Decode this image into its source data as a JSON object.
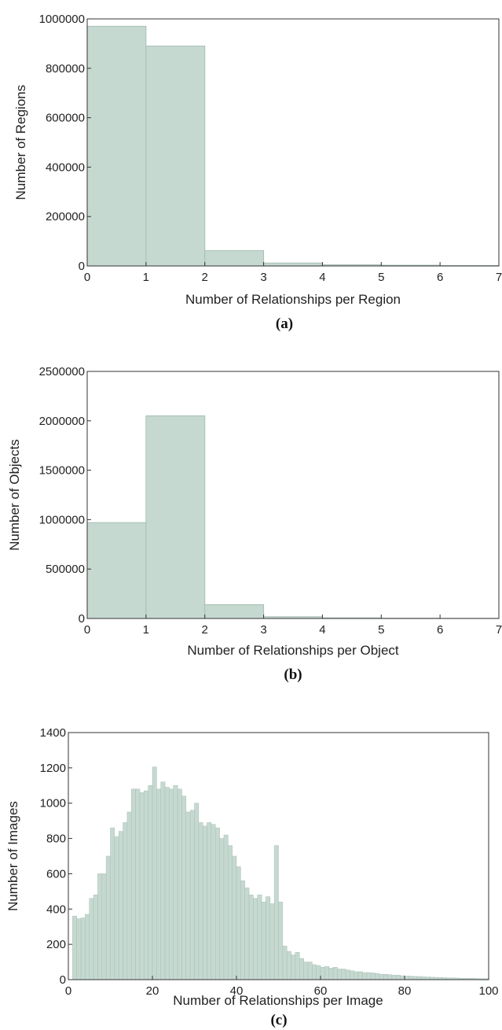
{
  "colors": {
    "bar_fill": "#c5d9d0",
    "bar_stroke": "#a9bfb6",
    "axis": "#333333",
    "text": "#222222"
  },
  "chart_data": [
    {
      "type": "bar",
      "caption": "(a)",
      "xlabel": "Number of Relationships per Region",
      "ylabel": "Number of Regions",
      "xlim": [
        0,
        7
      ],
      "ylim": [
        0,
        1000000
      ],
      "xticks": [
        0,
        1,
        2,
        3,
        4,
        5,
        6,
        7
      ],
      "yticks": [
        0,
        200000,
        400000,
        600000,
        800000,
        1000000
      ],
      "grid": false,
      "bin_edges": [
        0,
        1,
        2,
        3,
        4,
        5,
        6,
        7
      ],
      "values": [
        970000,
        890000,
        62000,
        12000,
        5000,
        3000,
        1500
      ]
    },
    {
      "type": "bar",
      "caption": "(b)",
      "xlabel": "Number of Relationships per Object",
      "ylabel": "Number of Objects",
      "xlim": [
        0,
        7
      ],
      "ylim": [
        0,
        2500000
      ],
      "xticks": [
        0,
        1,
        2,
        3,
        4,
        5,
        6,
        7
      ],
      "yticks": [
        0,
        500000,
        1000000,
        1500000,
        2000000,
        2500000
      ],
      "grid": false,
      "bin_edges": [
        0,
        1,
        2,
        3,
        4,
        5,
        6,
        7
      ],
      "values": [
        970000,
        2050000,
        140000,
        18000,
        6000,
        3000,
        1500
      ]
    },
    {
      "type": "bar",
      "caption": "(c)",
      "xlabel": "Number of Relationships per Image",
      "ylabel": "Number of Images",
      "xlim": [
        0,
        100
      ],
      "ylim": [
        0,
        1400
      ],
      "xticks": [
        0,
        20,
        40,
        60,
        80,
        100
      ],
      "yticks": [
        0,
        200,
        400,
        600,
        800,
        1000,
        1200,
        1400
      ],
      "grid": false,
      "bin_start": 1,
      "bin_width": 1,
      "values": [
        360,
        345,
        350,
        370,
        460,
        480,
        600,
        600,
        700,
        860,
        810,
        840,
        890,
        950,
        1080,
        1080,
        1060,
        1070,
        1100,
        1205,
        1080,
        1120,
        1090,
        1080,
        1100,
        1080,
        1040,
        950,
        960,
        1000,
        890,
        870,
        890,
        880,
        860,
        800,
        820,
        760,
        700,
        640,
        560,
        520,
        480,
        460,
        480,
        440,
        470,
        430,
        760,
        440,
        190,
        160,
        140,
        155,
        120,
        100,
        100,
        85,
        80,
        70,
        75,
        65,
        70,
        60,
        60,
        55,
        50,
        45,
        45,
        40,
        40,
        38,
        35,
        30,
        30,
        28,
        25,
        25,
        22,
        20,
        20,
        18,
        18,
        16,
        15,
        14,
        13,
        12,
        11,
        10,
        10,
        9,
        8,
        8,
        7,
        7,
        6,
        5,
        5
      ]
    }
  ]
}
